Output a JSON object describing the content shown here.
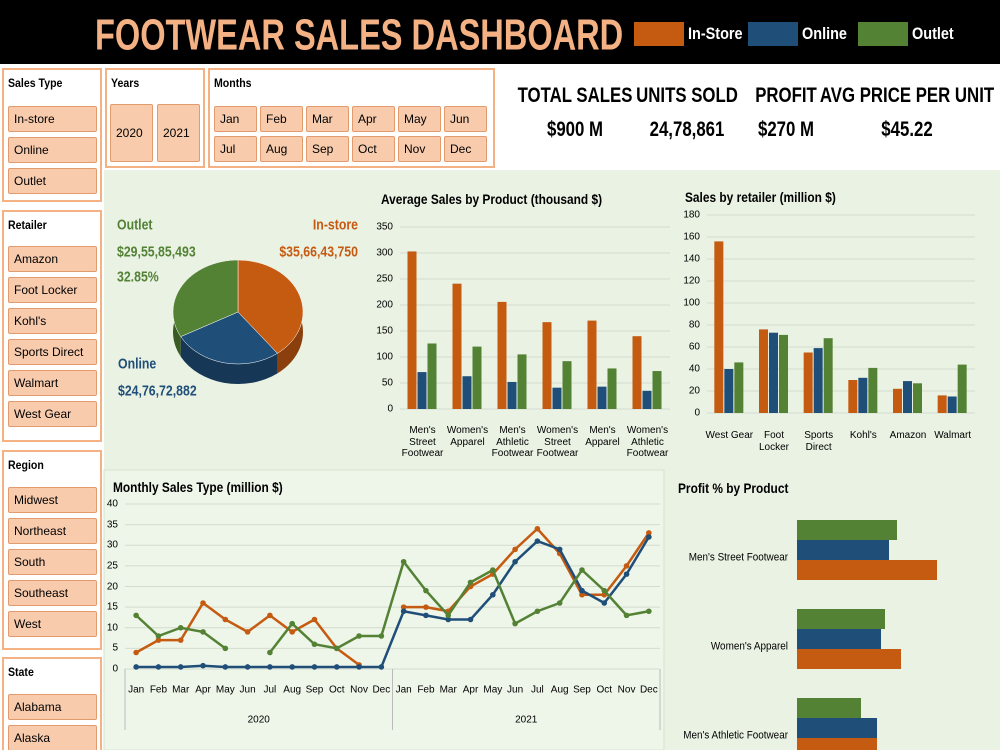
{
  "header": {
    "title": "FOOTWEAR SALES DASHBOARD",
    "legend": [
      {
        "name": "In-Store",
        "color": "#c55a11"
      },
      {
        "name": "Online",
        "color": "#1f4e79"
      },
      {
        "name": "Outlet",
        "color": "#548235"
      }
    ]
  },
  "slicers": [
    {
      "title": "Sales Type",
      "items": [
        "In-store",
        "Online",
        "Outlet"
      ]
    },
    {
      "title": "Years",
      "items": [
        "2020",
        "2021"
      ]
    },
    {
      "title": "Months",
      "items": [
        "Jan",
        "Feb",
        "Mar",
        "Apr",
        "May",
        "Jun",
        "Jul",
        "Aug",
        "Sep",
        "Oct",
        "Nov",
        "Dec"
      ]
    },
    {
      "title": "Retailer",
      "items": [
        "Amazon",
        "Foot Locker",
        "Kohl's",
        "Sports Direct",
        "Walmart",
        "West Gear"
      ]
    },
    {
      "title": "Region",
      "items": [
        "Midwest",
        "Northeast",
        "South",
        "Southeast",
        "West"
      ]
    },
    {
      "title": "State",
      "items": [
        "Alabama",
        "Alaska"
      ]
    }
  ],
  "kpis": [
    {
      "label": "TOTAL SALES",
      "value": "$900 M"
    },
    {
      "label": "UNITS SOLD",
      "value": "24,78,861"
    },
    {
      "label": "PROFIT",
      "value": "$270 M"
    },
    {
      "label": "AVG PRICE PER UNIT",
      "value": "$45.22"
    }
  ],
  "chart_data": [
    {
      "type": "pie",
      "categories": [
        "In-store",
        "Online",
        "Outlet"
      ],
      "values": [
        356643750,
        247672882,
        295585493
      ],
      "value_labels": [
        "$35,66,43,750",
        "$24,76,72,882",
        "$29,55,85,493"
      ],
      "colors": [
        "#c55a11",
        "#1f4e79",
        "#548235"
      ],
      "annotation": "32.85%"
    },
    {
      "type": "bar",
      "title": "Average Sales by Product (thousand $)",
      "categories": [
        "Men's Street Footwear",
        "Women's Apparel",
        "Men's Athletic Footwear",
        "Women's Street Footwear",
        "Men's Apparel",
        "Women's Athletic Footwear"
      ],
      "series": [
        {
          "color": "#c55a11",
          "values": [
            303,
            241,
            206,
            167,
            170,
            140
          ]
        },
        {
          "color": "#1f4e79",
          "values": [
            71,
            63,
            52,
            41,
            43,
            35
          ]
        },
        {
          "color": "#548235",
          "values": [
            126,
            120,
            105,
            92,
            78,
            73
          ]
        }
      ],
      "ylim": [
        0,
        350
      ],
      "yticks": [
        0,
        50,
        100,
        150,
        200,
        250,
        300,
        350
      ],
      "grid": true
    },
    {
      "type": "bar",
      "title": "Sales by retailer (million $)",
      "categories": [
        "West Gear",
        "Foot Locker",
        "Sports Direct",
        "Kohl's",
        "Amazon",
        "Walmart"
      ],
      "series": [
        {
          "color": "#c55a11",
          "values": [
            156,
            76,
            55,
            30,
            22,
            16
          ]
        },
        {
          "color": "#1f4e79",
          "values": [
            40,
            73,
            59,
            32,
            29,
            15
          ]
        },
        {
          "color": "#548235",
          "values": [
            46,
            71,
            68,
            41,
            27,
            44
          ]
        }
      ],
      "ylim": [
        0,
        180
      ],
      "yticks": [
        0,
        20,
        40,
        60,
        80,
        100,
        120,
        140,
        160,
        180
      ],
      "grid": true
    },
    {
      "type": "line",
      "title": "Monthly Sales Type (million $)",
      "categories": [
        "Jan",
        "Feb",
        "Mar",
        "Apr",
        "May",
        "Jun",
        "Jul",
        "Aug",
        "Sep",
        "Oct",
        "Nov",
        "Dec",
        "Jan",
        "Feb",
        "Mar",
        "Apr",
        "May",
        "Jun",
        "Jul",
        "Aug",
        "Sep",
        "Oct",
        "Nov",
        "Dec"
      ],
      "x_groups": [
        "2020",
        "2021"
      ],
      "series": [
        {
          "color": "#c55a11",
          "values": [
            4,
            7,
            7,
            16,
            12,
            9,
            13,
            9,
            12,
            5,
            1,
            null,
            15,
            15,
            14,
            20,
            23,
            29,
            34,
            28,
            18,
            18,
            25,
            33
          ]
        },
        {
          "color": "#1f4e79",
          "values": [
            0.5,
            0.5,
            0.5,
            0.8,
            0.5,
            0.5,
            0.5,
            0.5,
            0.5,
            0.5,
            0.5,
            0.5,
            14,
            13,
            12,
            12,
            18,
            26,
            31,
            29,
            19,
            16,
            23,
            32
          ]
        },
        {
          "color": "#548235",
          "values": [
            13,
            8,
            10,
            9,
            5,
            null,
            4,
            11,
            6,
            5,
            8,
            8,
            26,
            19,
            13,
            21,
            24,
            11,
            14,
            16,
            24,
            19,
            13,
            14
          ]
        }
      ],
      "ylim": [
        0,
        40
      ],
      "yticks": [
        0,
        5,
        10,
        15,
        20,
        25,
        30,
        35,
        40
      ],
      "grid": true
    },
    {
      "type": "hbar",
      "title": "Profit % by Product",
      "categories": [
        "Men's Street Footwear",
        "Women's Apparel",
        "Men's Athletic Footwear"
      ],
      "series": [
        {
          "color": "#c55a11",
          "values": [
            35,
            26,
            20
          ]
        },
        {
          "color": "#1f4e79",
          "values": [
            23,
            21,
            20
          ]
        },
        {
          "color": "#548235",
          "values": [
            25,
            22,
            16
          ]
        }
      ],
      "xlim": [
        0,
        50
      ]
    }
  ]
}
